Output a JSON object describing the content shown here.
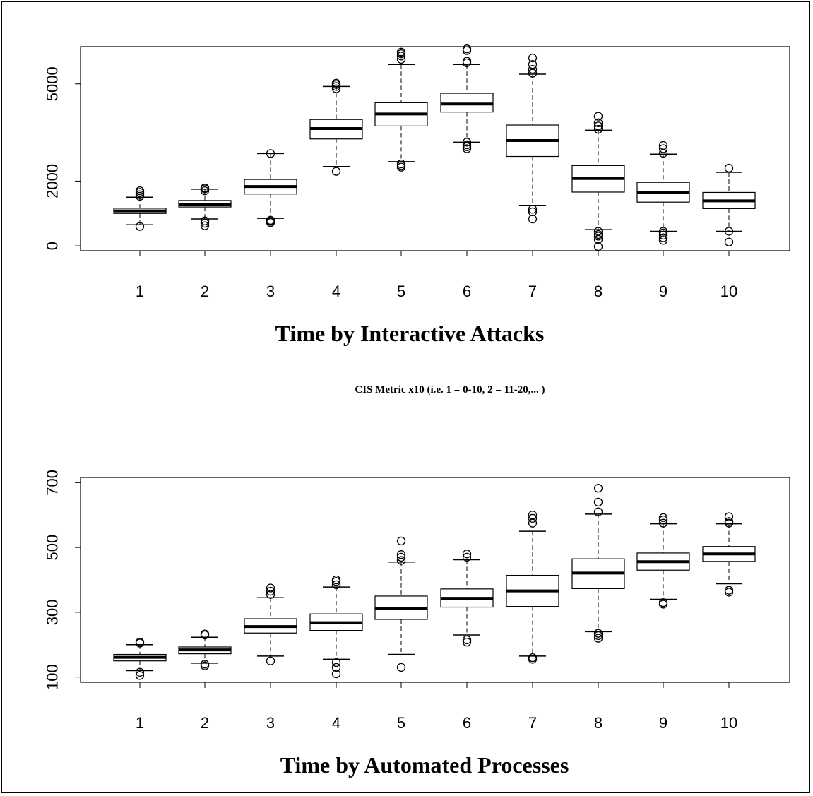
{
  "subtitle": "CIS Metric x10 (i.e. 1 = 0-10, 2 = 11-20,... )",
  "chart_data": [
    {
      "type": "box",
      "title": "Time by Interactive Attacks",
      "xlabel": "",
      "ylabel": "",
      "categories": [
        "1",
        "2",
        "3",
        "4",
        "5",
        "6",
        "7",
        "8",
        "9",
        "10"
      ],
      "ylim": [
        -150,
        6150
      ],
      "yticks": [
        0,
        2000,
        5000
      ],
      "ytick_labels": [
        "0",
        "2000",
        "5000"
      ],
      "boxes": [
        {
          "whisker_low": 650,
          "q1": 1000,
          "median": 1080,
          "q3": 1160,
          "whisker_high": 1500,
          "outliers": [
            600,
            1530,
            1580,
            1650,
            1700
          ]
        },
        {
          "whisker_low": 830,
          "q1": 1200,
          "median": 1290,
          "q3": 1400,
          "whisker_high": 1750,
          "outliers": [
            620,
            700,
            770,
            1700,
            1760,
            1790
          ]
        },
        {
          "whisker_low": 850,
          "q1": 1600,
          "median": 1830,
          "q3": 2050,
          "whisker_high": 2850,
          "outliers": [
            720,
            760,
            790,
            2850
          ]
        },
        {
          "whisker_low": 2450,
          "q1": 3300,
          "median": 3620,
          "q3": 3900,
          "whisker_high": 4920,
          "outliers": [
            2300,
            4850,
            4920,
            4980,
            5020
          ]
        },
        {
          "whisker_low": 2600,
          "q1": 3700,
          "median": 4070,
          "q3": 4420,
          "whisker_high": 5600,
          "outliers": [
            2430,
            2480,
            2530,
            5760,
            5860,
            5930,
            5980
          ]
        },
        {
          "whisker_low": 3200,
          "q1": 4130,
          "median": 4380,
          "q3": 4710,
          "whisker_high": 5600,
          "outliers": [
            3000,
            3060,
            3120,
            3200,
            5650,
            5700,
            6030,
            6080
          ]
        },
        {
          "whisker_low": 1250,
          "q1": 2760,
          "median": 3250,
          "q3": 3730,
          "whisker_high": 5300,
          "outliers": [
            830,
            1050,
            1130,
            5330,
            5450,
            5600,
            5800
          ]
        },
        {
          "whisker_low": 500,
          "q1": 1660,
          "median": 2080,
          "q3": 2480,
          "whisker_high": 3570,
          "outliers": [
            -20,
            200,
            300,
            350,
            450,
            3600,
            3700,
            3800,
            4000
          ]
        },
        {
          "whisker_low": 450,
          "q1": 1350,
          "median": 1650,
          "q3": 1960,
          "whisker_high": 2830,
          "outliers": [
            170,
            250,
            330,
            400,
            450,
            2860,
            3000,
            3100
          ]
        },
        {
          "whisker_low": 450,
          "q1": 1150,
          "median": 1390,
          "q3": 1650,
          "whisker_high": 2270,
          "outliers": [
            120,
            450,
            2400
          ]
        }
      ]
    },
    {
      "type": "box",
      "title": "Time by Automated Processes",
      "xlabel": "",
      "ylabel": "",
      "categories": [
        "1",
        "2",
        "3",
        "4",
        "5",
        "6",
        "7",
        "8",
        "9",
        "10"
      ],
      "ylim": [
        84,
        716
      ],
      "yticks": [
        100,
        300,
        500,
        700
      ],
      "ytick_labels": [
        "100",
        "300",
        "500",
        "700"
      ],
      "boxes": [
        {
          "whisker_low": 120,
          "q1": 150,
          "median": 161,
          "q3": 170,
          "whisker_high": 200,
          "outliers": [
            105,
            115,
            205,
            208
          ]
        },
        {
          "whisker_low": 143,
          "q1": 172,
          "median": 184,
          "q3": 193,
          "whisker_high": 223,
          "outliers": [
            135,
            140,
            230,
            233
          ]
        },
        {
          "whisker_low": 165,
          "q1": 236,
          "median": 256,
          "q3": 280,
          "whisker_high": 345,
          "outliers": [
            150,
            355,
            365,
            375
          ]
        },
        {
          "whisker_low": 155,
          "q1": 244,
          "median": 268,
          "q3": 295,
          "whisker_high": 378,
          "outliers": [
            110,
            130,
            145,
            385,
            395,
            400
          ]
        },
        {
          "whisker_low": 170,
          "q1": 278,
          "median": 312,
          "q3": 350,
          "whisker_high": 455,
          "outliers": [
            130,
            460,
            470,
            478,
            520
          ]
        },
        {
          "whisker_low": 230,
          "q1": 316,
          "median": 343,
          "q3": 372,
          "whisker_high": 462,
          "outliers": [
            208,
            215,
            470,
            480
          ]
        },
        {
          "whisker_low": 165,
          "q1": 318,
          "median": 366,
          "q3": 414,
          "whisker_high": 550,
          "outliers": [
            155,
            160,
            575,
            590,
            600
          ]
        },
        {
          "whisker_low": 240,
          "q1": 373,
          "median": 421,
          "q3": 465,
          "whisker_high": 603,
          "outliers": [
            220,
            228,
            235,
            610,
            640,
            683
          ]
        },
        {
          "whisker_low": 340,
          "q1": 430,
          "median": 456,
          "q3": 483,
          "whisker_high": 573,
          "outliers": [
            325,
            330,
            575,
            585,
            592
          ]
        },
        {
          "whisker_low": 388,
          "q1": 457,
          "median": 480,
          "q3": 503,
          "whisker_high": 573,
          "outliers": [
            362,
            368,
            575,
            580,
            595
          ]
        }
      ]
    }
  ]
}
